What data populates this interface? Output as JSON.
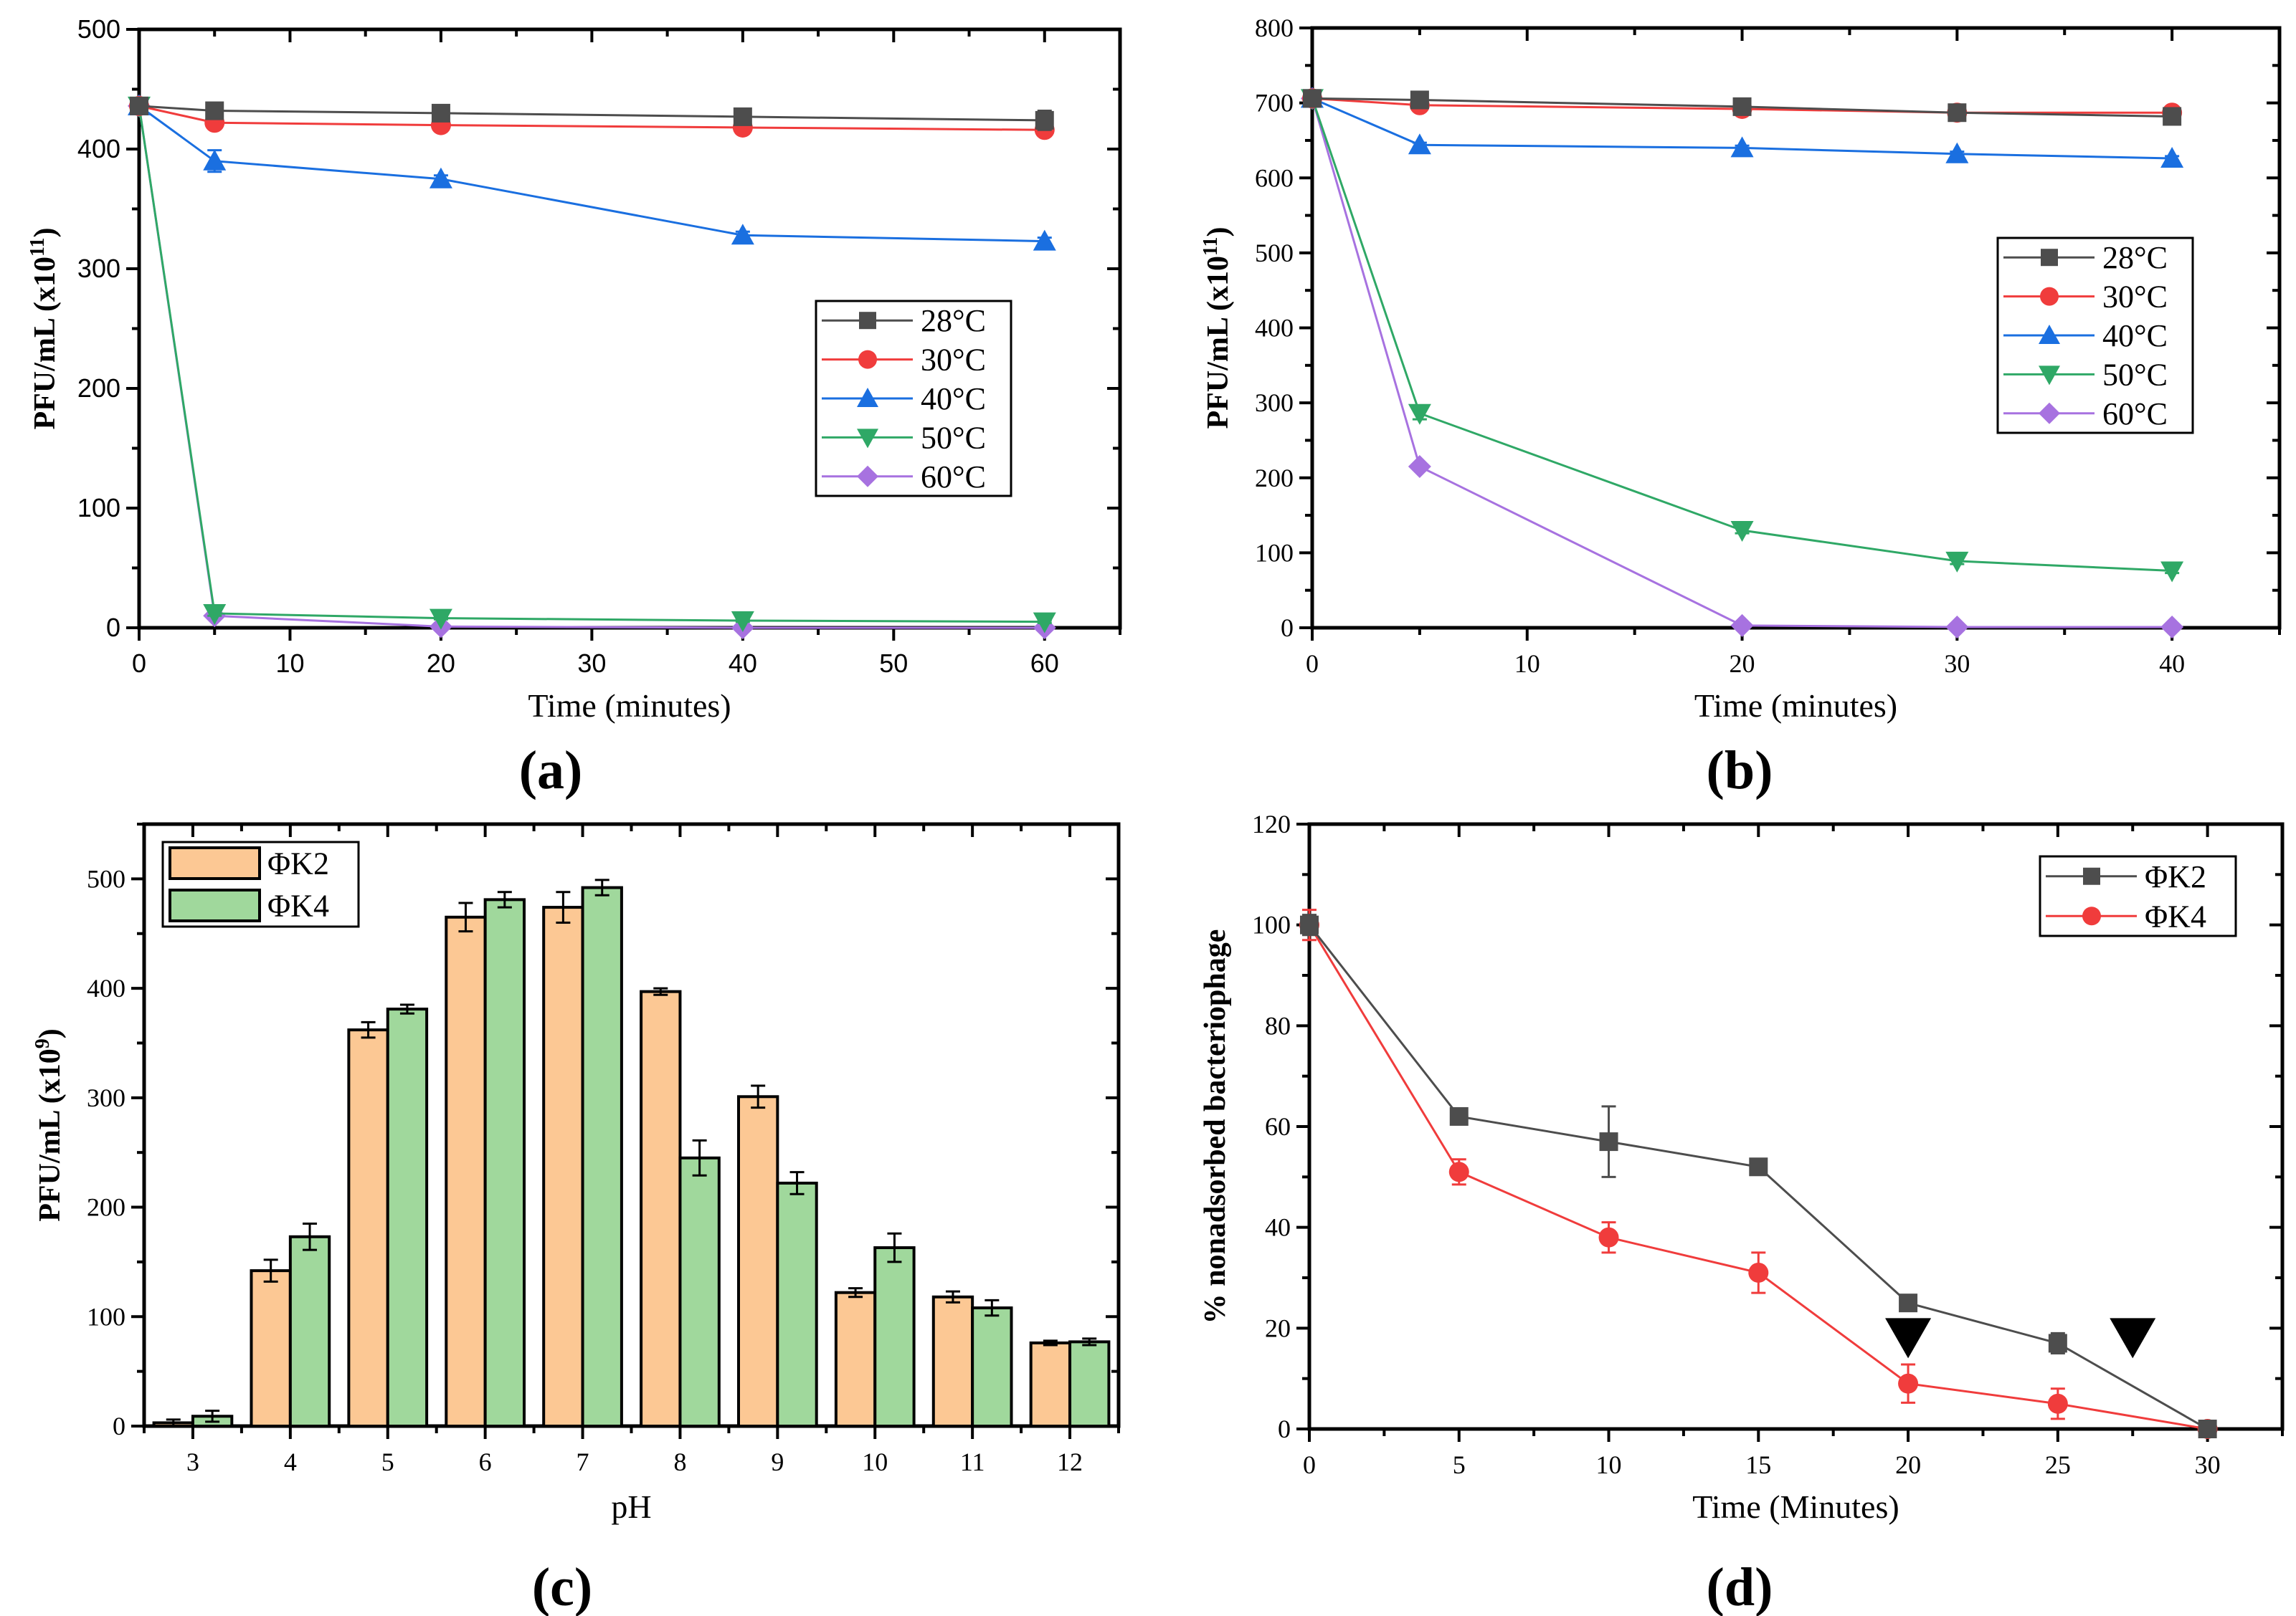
{
  "chart_data": [
    {
      "id": "a",
      "type": "line",
      "panel_label": "(a)",
      "xlabel": "Time (minutes)",
      "ylabel": "PFU/mL (x10",
      "ylabel_exp": "11",
      "ylabel_close": ")",
      "xlim": [
        0,
        65
      ],
      "ylim": [
        0,
        500
      ],
      "xticks": [
        0,
        10,
        20,
        30,
        40,
        50,
        60
      ],
      "yticks": [
        0,
        100,
        200,
        300,
        400,
        500
      ],
      "legend_position": "center-right",
      "x": [
        0,
        5,
        20,
        40,
        60
      ],
      "series": [
        {
          "name": "28°C",
          "color": "#4d4d4d",
          "marker": "square",
          "values": [
            436,
            432,
            430,
            427,
            424
          ],
          "errors": [
            3,
            2,
            2,
            2,
            8
          ]
        },
        {
          "name": "30°C",
          "color": "#f03c3c",
          "marker": "circle",
          "values": [
            436,
            422,
            420,
            418,
            416
          ],
          "errors": [
            3,
            3,
            2,
            5,
            3
          ]
        },
        {
          "name": "40°C",
          "color": "#1a6fe0",
          "marker": "triangle-up",
          "values": [
            436,
            390,
            375,
            328,
            323
          ],
          "errors": [
            3,
            9,
            3,
            3,
            3
          ]
        },
        {
          "name": "50°C",
          "color": "#2fa866",
          "marker": "triangle-down",
          "values": [
            436,
            12,
            8,
            6,
            5
          ],
          "errors": [
            2,
            2,
            1,
            1,
            1
          ]
        },
        {
          "name": "60°C",
          "color": "#a772e0",
          "marker": "diamond",
          "values": [
            436,
            10,
            1,
            0,
            0
          ],
          "errors": [
            2,
            2,
            1,
            0,
            0
          ]
        }
      ]
    },
    {
      "id": "b",
      "type": "line",
      "panel_label": "(b)",
      "xlabel": "Time (minutes)",
      "ylabel": "PFU/mL (x10",
      "ylabel_exp": "11",
      "ylabel_close": ")",
      "xlim": [
        0,
        45
      ],
      "ylim": [
        0,
        800
      ],
      "xticks": [
        0,
        10,
        20,
        30,
        40
      ],
      "yticks": [
        0,
        100,
        200,
        300,
        400,
        500,
        600,
        700,
        800
      ],
      "legend_position": "center-right",
      "x": [
        0,
        5,
        20,
        30,
        40
      ],
      "series": [
        {
          "name": "28°C",
          "color": "#4d4d4d",
          "marker": "square",
          "values": [
            706,
            704,
            695,
            687,
            682
          ],
          "errors": [
            3,
            3,
            3,
            4,
            3
          ]
        },
        {
          "name": "30°C",
          "color": "#f03c3c",
          "marker": "circle",
          "values": [
            706,
            697,
            692,
            687,
            687
          ],
          "errors": [
            3,
            5,
            5,
            4,
            3
          ]
        },
        {
          "name": "40°C",
          "color": "#1a6fe0",
          "marker": "triangle-up",
          "values": [
            706,
            644,
            640,
            632,
            626
          ],
          "errors": [
            3,
            3,
            3,
            3,
            3
          ]
        },
        {
          "name": "50°C",
          "color": "#2fa866",
          "marker": "triangle-down",
          "values": [
            706,
            286,
            130,
            89,
            76
          ],
          "errors": [
            3,
            8,
            4,
            4,
            3
          ]
        },
        {
          "name": "60°C",
          "color": "#a772e0",
          "marker": "diamond",
          "values": [
            706,
            215,
            3,
            1,
            1
          ],
          "errors": [
            3,
            4,
            1,
            0,
            0
          ]
        }
      ]
    },
    {
      "id": "c",
      "type": "bar",
      "panel_label": "(c)",
      "xlabel": "pH",
      "ylabel": "PFU/mL (x10",
      "ylabel_exp": "9",
      "ylabel_close": ")",
      "ylim": [
        0,
        550
      ],
      "yticks": [
        0,
        100,
        200,
        300,
        400,
        500
      ],
      "legend_position": "top-left",
      "categories": [
        "3",
        "4",
        "5",
        "6",
        "7",
        "8",
        "9",
        "10",
        "11",
        "12"
      ],
      "series": [
        {
          "name": "ΦK2",
          "color": "#fcc894",
          "values": [
            3,
            142,
            362,
            465,
            474,
            397,
            301,
            122,
            118,
            76
          ],
          "errors": [
            3,
            10,
            7,
            13,
            14,
            3,
            10,
            4,
            5,
            2
          ]
        },
        {
          "name": "ΦK4",
          "color": "#a0d89c",
          "values": [
            9,
            173,
            381,
            481,
            492,
            245,
            222,
            163,
            108,
            77
          ],
          "errors": [
            5,
            12,
            4,
            7,
            7,
            16,
            10,
            13,
            7,
            3
          ]
        }
      ]
    },
    {
      "id": "d",
      "type": "line",
      "panel_label": "(d)",
      "xlabel": "Time (Minutes)",
      "ylabel": "% nonadsorbed bacteriophage",
      "xlim": [
        0,
        32.5
      ],
      "ylim": [
        0,
        120
      ],
      "xticks": [
        0,
        5,
        10,
        15,
        20,
        25,
        30
      ],
      "yticks": [
        0,
        20,
        40,
        60,
        80,
        100,
        120
      ],
      "legend_position": "top-right",
      "x": [
        0,
        5,
        10,
        15,
        20,
        25,
        30
      ],
      "series": [
        {
          "name": "ΦK2",
          "color": "#4d4d4d",
          "marker": "square",
          "values": [
            100,
            62,
            57,
            52,
            25,
            17,
            0
          ],
          "errors": [
            2,
            1,
            7,
            1,
            1,
            2,
            0.5
          ]
        },
        {
          "name": "ΦK4",
          "color": "#f03c3c",
          "marker": "circle",
          "values": [
            100,
            51,
            38,
            31,
            9,
            5,
            0
          ],
          "errors": [
            3,
            2.5,
            3,
            4,
            3.8,
            3,
            0.5
          ]
        }
      ],
      "annotations": [
        {
          "type": "arrowhead-down",
          "x": 20,
          "y": 18
        },
        {
          "type": "arrowhead-down",
          "x": 27.5,
          "y": 18
        }
      ]
    }
  ]
}
